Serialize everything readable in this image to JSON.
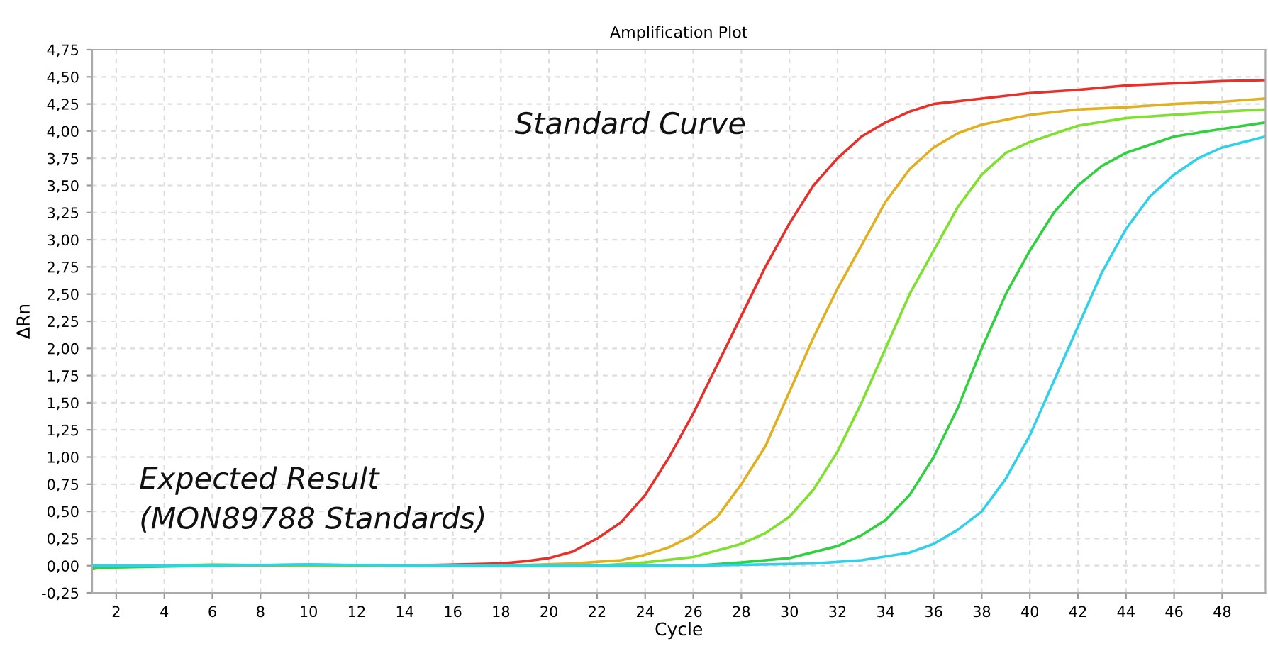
{
  "chart_data": {
    "type": "line",
    "title": "Amplification Plot",
    "xlabel": "Cycle",
    "ylabel": "ΔRn",
    "annotations": [
      "Standard Curve",
      "Expected Result\n(MON89788 Standards)"
    ],
    "xlim": [
      1,
      49.8
    ],
    "xticks": [
      2,
      4,
      6,
      8,
      10,
      12,
      14,
      16,
      18,
      20,
      22,
      24,
      26,
      28,
      30,
      32,
      34,
      36,
      38,
      40,
      42,
      44,
      46,
      48
    ],
    "ylim": [
      -0.25,
      4.75
    ],
    "yticks": [
      {
        "value": -0.25,
        "label": "-0,25"
      },
      {
        "value": 0,
        "label": "0,00"
      },
      {
        "value": 0.25,
        "label": "0,25"
      },
      {
        "value": 0.5,
        "label": "0,50"
      },
      {
        "value": 0.75,
        "label": "0,75"
      },
      {
        "value": 1,
        "label": "1,00"
      },
      {
        "value": 1.25,
        "label": "1,25"
      },
      {
        "value": 1.5,
        "label": "1,50"
      },
      {
        "value": 1.75,
        "label": "1,75"
      },
      {
        "value": 2,
        "label": "2,00"
      },
      {
        "value": 2.25,
        "label": "2,25"
      },
      {
        "value": 2.5,
        "label": "2,50"
      },
      {
        "value": 2.75,
        "label": "2,75"
      },
      {
        "value": 3,
        "label": "3,00"
      },
      {
        "value": 3.25,
        "label": "3,25"
      },
      {
        "value": 3.5,
        "label": "3,50"
      },
      {
        "value": 3.75,
        "label": "3,75"
      },
      {
        "value": 4,
        "label": "4,00"
      },
      {
        "value": 4.25,
        "label": "4,25"
      },
      {
        "value": 4.5,
        "label": "4,50"
      },
      {
        "value": 4.75,
        "label": "4,75"
      }
    ],
    "grid": true,
    "marker": "none",
    "line_style": "solid",
    "series": [
      {
        "color": "#e8302a",
        "x": [
          1,
          2,
          6,
          10,
          14,
          18,
          19,
          20,
          21,
          22,
          23,
          24,
          25,
          26,
          27,
          28,
          29,
          30,
          31,
          32,
          33,
          34,
          35,
          36,
          38,
          40,
          42,
          44,
          46,
          48,
          49.8
        ],
        "values": [
          -0.03,
          0,
          0,
          0,
          0,
          0.02,
          0.04,
          0.07,
          0.13,
          0.25,
          0.4,
          0.65,
          1.0,
          1.4,
          1.85,
          2.3,
          2.75,
          3.15,
          3.5,
          3.75,
          3.95,
          4.08,
          4.18,
          4.25,
          4.3,
          4.35,
          4.38,
          4.42,
          4.44,
          4.46,
          4.47
        ]
      },
      {
        "color": "#e0b020",
        "x": [
          1,
          6,
          10,
          14,
          18,
          21,
          23,
          24,
          25,
          26,
          27,
          28,
          29,
          30,
          31,
          32,
          33,
          34,
          35,
          36,
          37,
          38,
          40,
          42,
          44,
          46,
          48,
          49.8
        ],
        "values": [
          0,
          0,
          0,
          0,
          0,
          0.02,
          0.05,
          0.1,
          0.17,
          0.28,
          0.45,
          0.75,
          1.1,
          1.6,
          2.1,
          2.55,
          2.95,
          3.35,
          3.65,
          3.85,
          3.98,
          4.06,
          4.15,
          4.2,
          4.22,
          4.25,
          4.27,
          4.3
        ]
      },
      {
        "color": "#80e030",
        "x": [
          1,
          6,
          10,
          14,
          18,
          22,
          24,
          26,
          28,
          29,
          30,
          31,
          32,
          33,
          34,
          35,
          36,
          37,
          38,
          39,
          40,
          42,
          44,
          46,
          48,
          49.8
        ],
        "values": [
          -0.02,
          0.01,
          0,
          0,
          0,
          0,
          0.03,
          0.08,
          0.2,
          0.3,
          0.45,
          0.7,
          1.05,
          1.5,
          2.0,
          2.5,
          2.9,
          3.3,
          3.6,
          3.8,
          3.9,
          4.05,
          4.12,
          4.15,
          4.18,
          4.2
        ]
      },
      {
        "color": "#30d040",
        "x": [
          1,
          6,
          10,
          14,
          18,
          22,
          26,
          28,
          30,
          32,
          33,
          34,
          35,
          36,
          37,
          38,
          39,
          40,
          41,
          42,
          43,
          44,
          46,
          48,
          49.8
        ],
        "values": [
          -0.02,
          0,
          0.01,
          0,
          0,
          0,
          0,
          0.03,
          0.07,
          0.18,
          0.28,
          0.42,
          0.65,
          1.0,
          1.45,
          2.0,
          2.5,
          2.9,
          3.25,
          3.5,
          3.68,
          3.8,
          3.95,
          4.02,
          4.08
        ]
      },
      {
        "color": "#30d0e8",
        "x": [
          1,
          6,
          10,
          14,
          18,
          22,
          26,
          31,
          33,
          35,
          36,
          37,
          38,
          39,
          40,
          41,
          42,
          43,
          44,
          45,
          46,
          47,
          48,
          49.8
        ],
        "values": [
          0,
          0,
          0.01,
          0,
          0,
          0,
          0,
          0.02,
          0.05,
          0.12,
          0.2,
          0.33,
          0.5,
          0.8,
          1.2,
          1.7,
          2.2,
          2.7,
          3.1,
          3.4,
          3.6,
          3.75,
          3.85,
          3.95
        ]
      }
    ]
  }
}
